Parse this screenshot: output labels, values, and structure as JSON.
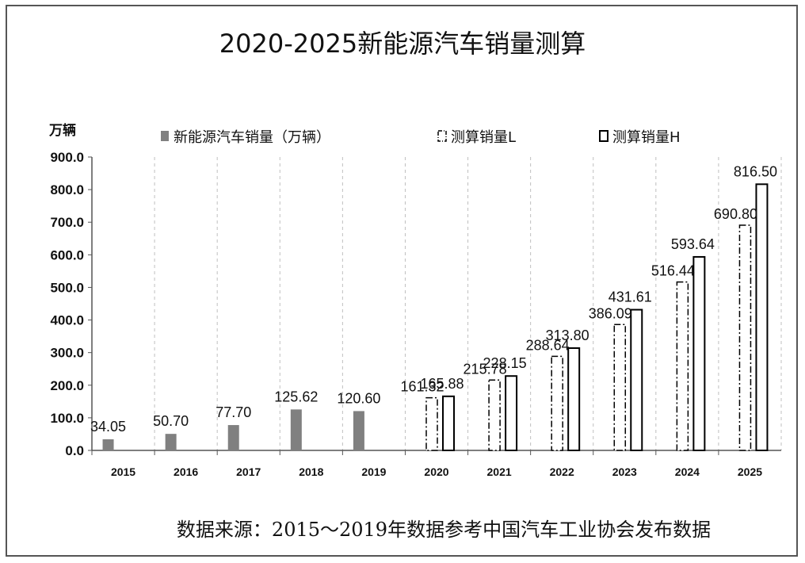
{
  "chart_data": {
    "type": "bar",
    "title": "2020-2025新能源汽车销量测算",
    "ylabel": "万辆",
    "ylim": [
      0,
      900
    ],
    "yticks": [
      "900.0",
      "800.0",
      "700.0",
      "600.0",
      "500.0",
      "400.0",
      "300.0",
      "200.0",
      "100.0",
      "0.0"
    ],
    "yticks_values": [
      900,
      800,
      700,
      600,
      500,
      400,
      300,
      200,
      100,
      0
    ],
    "categories": [
      "2015",
      "2016",
      "2017",
      "2018",
      "2019",
      "2020",
      "2021",
      "2022",
      "2023",
      "2024",
      "2025"
    ],
    "grid": "vertical dashed",
    "legend_position": "top",
    "series": [
      {
        "name": "新能源汽车销量（万辆）",
        "style": "solid-gray",
        "values": [
          34.05,
          50.7,
          77.7,
          125.62,
          120.6,
          null,
          null,
          null,
          null,
          null,
          null
        ],
        "labels": [
          "34.05",
          "50.70",
          "77.70",
          "125.62",
          "120.60",
          "",
          "",
          "",
          "",
          "",
          ""
        ]
      },
      {
        "name": "测算销量L",
        "style": "dash-dot-outline",
        "values": [
          null,
          null,
          null,
          null,
          null,
          161.32,
          215.78,
          288.64,
          386.09,
          516.44,
          690.8
        ],
        "labels": [
          "",
          "",
          "",
          "",
          "",
          "161.32",
          "215.78",
          "288.64",
          "386.09",
          "516.44",
          "690.80"
        ]
      },
      {
        "name": "测算销量H",
        "style": "solid-outline",
        "values": [
          null,
          null,
          null,
          null,
          null,
          165.88,
          228.15,
          313.8,
          431.61,
          593.64,
          816.5
        ],
        "labels": [
          "",
          "",
          "",
          "",
          "",
          "165.88",
          "228.15",
          "313.80",
          "431.61",
          "593.64",
          "816.50"
        ]
      }
    ],
    "colors": {
      "actual": "#808080",
      "outline": "#000000",
      "grid": "#bfbfbf"
    }
  },
  "source_note": "数据来源：2015～2019年数据参考中国汽车工业协会发布数据"
}
